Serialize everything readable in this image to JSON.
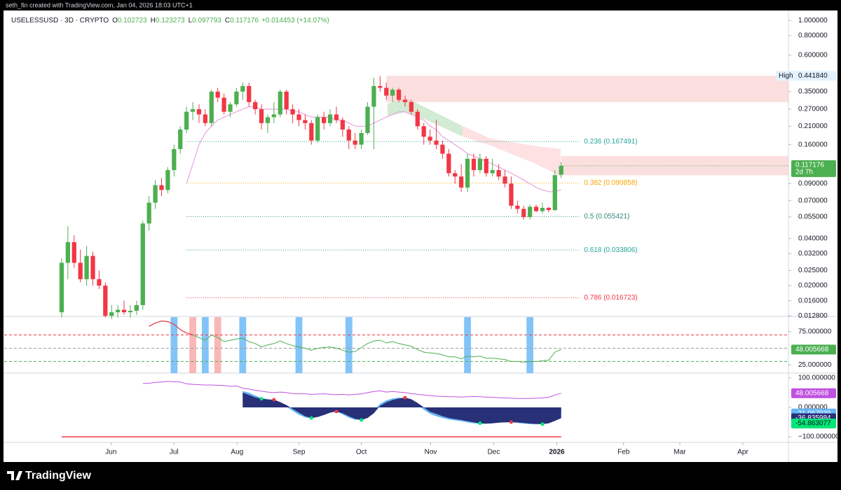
{
  "chart_data": {
    "type": "candlestick",
    "credit": "seth_fin created with TradingView.com, Jan 04, 2026 18:03 UTC+1",
    "symbol": "USELESSUSD · 3D · CRYPTO",
    "ohlc_labels": [
      "O",
      "H",
      "L",
      "C"
    ],
    "change": "+0.014453 (+14.07%)",
    "brand": "TradingView",
    "countdown": "2d 7h",
    "up_color": "#4caf50",
    "down_color": "#f23645",
    "log": true,
    "xlim": [
      -9.2,
      116.4
    ],
    "xticks": [
      {
        "value": 7.9,
        "label": "Jun"
      },
      {
        "value": 18,
        "label": "Jul"
      },
      {
        "value": 28.1,
        "label": "Aug"
      },
      {
        "value": 38,
        "label": "Sep"
      },
      {
        "value": 48,
        "label": "Oct"
      },
      {
        "value": 59.1,
        "label": "Nov"
      },
      {
        "value": 69.2,
        "label": "Dec"
      },
      {
        "value": 79.3,
        "label": "2026"
      },
      {
        "value": 90,
        "label": "Feb"
      },
      {
        "value": 99,
        "label": "Mar"
      },
      {
        "value": 109.1,
        "label": "Apr"
      }
    ],
    "ylim": [
      0.0127,
      1.1
    ],
    "yticks": [
      {
        "value": 1,
        "label": "1.000000"
      },
      {
        "value": 0.8,
        "label": "0.800000"
      },
      {
        "value": 0.6,
        "label": "0.600000"
      },
      {
        "value": 0.35,
        "label": "0.350000"
      },
      {
        "value": 0.27,
        "label": "0.270000"
      },
      {
        "value": 0.21,
        "label": "0.210000"
      },
      {
        "value": 0.16,
        "label": "0.160000"
      },
      {
        "value": 0.09,
        "label": "0.090000"
      },
      {
        "value": 0.07,
        "label": "0.070000"
      },
      {
        "value": 0.055,
        "label": "0.055000"
      },
      {
        "value": 0.04,
        "label": "0.040000"
      },
      {
        "value": 0.032,
        "label": "0.032000"
      },
      {
        "value": 0.025,
        "label": "0.025000"
      },
      {
        "value": 0.02,
        "label": "0.020000"
      },
      {
        "value": 0.016,
        "label": "0.016000"
      },
      {
        "value": 0.0128,
        "label": "0.012800"
      }
    ],
    "candles": [
      [
        0.0135,
        0.03,
        0.0125,
        0.028
      ],
      [
        0.028,
        0.048,
        0.022,
        0.038
      ],
      [
        0.038,
        0.042,
        0.026,
        0.028
      ],
      [
        0.028,
        0.034,
        0.021,
        0.022
      ],
      [
        0.022,
        0.036,
        0.02,
        0.031
      ],
      [
        0.031,
        0.033,
        0.02,
        0.022
      ],
      [
        0.022,
        0.025,
        0.019,
        0.02
      ],
      [
        0.02,
        0.021,
        0.0125,
        0.0128
      ],
      [
        0.0128,
        0.015,
        0.0122,
        0.0135
      ],
      [
        0.0135,
        0.015,
        0.0125,
        0.014
      ],
      [
        0.014,
        0.016,
        0.013,
        0.0135
      ],
      [
        0.0135,
        0.015,
        0.0125,
        0.0138
      ],
      [
        0.0138,
        0.016,
        0.013,
        0.015
      ],
      [
        0.015,
        0.052,
        0.014,
        0.05
      ],
      [
        0.05,
        0.075,
        0.045,
        0.068
      ],
      [
        0.068,
        0.095,
        0.062,
        0.088
      ],
      [
        0.088,
        0.098,
        0.075,
        0.082
      ],
      [
        0.082,
        0.115,
        0.078,
        0.11
      ],
      [
        0.11,
        0.16,
        0.1,
        0.15
      ],
      [
        0.15,
        0.21,
        0.14,
        0.2
      ],
      [
        0.2,
        0.28,
        0.19,
        0.26
      ],
      [
        0.26,
        0.3,
        0.23,
        0.27
      ],
      [
        0.27,
        0.29,
        0.22,
        0.25
      ],
      [
        0.25,
        0.27,
        0.21,
        0.22
      ],
      [
        0.22,
        0.36,
        0.21,
        0.35
      ],
      [
        0.35,
        0.37,
        0.3,
        0.32
      ],
      [
        0.32,
        0.34,
        0.25,
        0.26
      ],
      [
        0.26,
        0.3,
        0.24,
        0.29
      ],
      [
        0.29,
        0.37,
        0.28,
        0.35
      ],
      [
        0.35,
        0.4,
        0.31,
        0.38
      ],
      [
        0.38,
        0.4,
        0.28,
        0.3
      ],
      [
        0.3,
        0.31,
        0.25,
        0.27
      ],
      [
        0.27,
        0.29,
        0.2,
        0.22
      ],
      [
        0.22,
        0.25,
        0.19,
        0.24
      ],
      [
        0.24,
        0.3,
        0.22,
        0.25
      ],
      [
        0.25,
        0.36,
        0.24,
        0.35
      ],
      [
        0.35,
        0.36,
        0.25,
        0.27
      ],
      [
        0.27,
        0.29,
        0.22,
        0.25
      ],
      [
        0.25,
        0.27,
        0.21,
        0.23
      ],
      [
        0.23,
        0.25,
        0.2,
        0.22
      ],
      [
        0.22,
        0.23,
        0.16,
        0.17
      ],
      [
        0.17,
        0.25,
        0.165,
        0.24
      ],
      [
        0.24,
        0.26,
        0.2,
        0.22
      ],
      [
        0.22,
        0.27,
        0.21,
        0.25
      ],
      [
        0.25,
        0.28,
        0.22,
        0.23
      ],
      [
        0.23,
        0.24,
        0.18,
        0.2
      ],
      [
        0.2,
        0.21,
        0.15,
        0.17
      ],
      [
        0.17,
        0.19,
        0.15,
        0.16
      ],
      [
        0.16,
        0.2,
        0.15,
        0.19
      ],
      [
        0.19,
        0.3,
        0.185,
        0.28
      ],
      [
        0.28,
        0.43,
        0.15,
        0.38
      ],
      [
        0.38,
        0.44,
        0.35,
        0.37
      ],
      [
        0.37,
        0.4,
        0.31,
        0.33
      ],
      [
        0.33,
        0.37,
        0.3,
        0.36
      ],
      [
        0.36,
        0.37,
        0.3,
        0.31
      ],
      [
        0.31,
        0.33,
        0.28,
        0.3
      ],
      [
        0.3,
        0.31,
        0.25,
        0.26
      ],
      [
        0.26,
        0.27,
        0.2,
        0.21
      ],
      [
        0.21,
        0.22,
        0.16,
        0.18
      ],
      [
        0.18,
        0.2,
        0.16,
        0.17
      ],
      [
        0.17,
        0.23,
        0.15,
        0.16
      ],
      [
        0.16,
        0.17,
        0.13,
        0.14
      ],
      [
        0.14,
        0.15,
        0.1,
        0.105
      ],
      [
        0.105,
        0.11,
        0.09,
        0.1
      ],
      [
        0.1,
        0.12,
        0.08,
        0.085
      ],
      [
        0.085,
        0.14,
        0.08,
        0.13
      ],
      [
        0.13,
        0.14,
        0.1,
        0.11
      ],
      [
        0.11,
        0.14,
        0.105,
        0.13
      ],
      [
        0.13,
        0.135,
        0.1,
        0.105
      ],
      [
        0.105,
        0.13,
        0.1,
        0.11
      ],
      [
        0.11,
        0.12,
        0.095,
        0.1
      ],
      [
        0.1,
        0.11,
        0.085,
        0.09
      ],
      [
        0.09,
        0.1,
        0.062,
        0.065
      ],
      [
        0.065,
        0.07,
        0.058,
        0.062
      ],
      [
        0.062,
        0.065,
        0.053,
        0.055
      ],
      [
        0.055,
        0.066,
        0.053,
        0.064
      ],
      [
        0.064,
        0.066,
        0.059,
        0.06
      ],
      [
        0.06,
        0.068,
        0.058,
        0.063
      ],
      [
        0.063,
        0.064,
        0.059,
        0.061
      ],
      [
        0.061,
        0.11,
        0.06,
        0.102
      ],
      [
        0.102723,
        0.123273,
        0.097793,
        0.117176
      ]
    ],
    "ma": {
      "color": "#e9a3e0",
      "values": [
        null,
        null,
        null,
        null,
        null,
        null,
        null,
        null,
        null,
        null,
        null,
        null,
        null,
        null,
        null,
        null,
        null,
        null,
        null,
        null,
        0.09,
        0.12,
        0.16,
        0.19,
        0.21,
        0.23,
        0.24,
        0.25,
        0.26,
        0.27,
        0.28,
        0.28,
        0.27,
        0.27,
        0.27,
        0.27,
        0.27,
        0.26,
        0.26,
        0.25,
        0.24,
        0.24,
        0.24,
        0.24,
        0.23,
        0.23,
        0.22,
        0.21,
        0.21,
        0.21,
        0.22,
        0.23,
        0.24,
        0.25,
        0.26,
        0.26,
        0.25,
        0.24,
        0.23,
        0.21,
        0.2,
        0.18,
        0.17,
        0.16,
        0.15,
        0.14,
        0.135,
        0.13,
        0.125,
        0.12,
        0.115,
        0.11,
        0.105,
        0.1,
        0.095,
        0.09,
        0.085,
        0.082,
        0.08,
        0.08,
        0.082
      ]
    },
    "zones": [
      {
        "lo": 0.3,
        "hi": 0.44184,
        "from": 52
      },
      {
        "lo": 0.102,
        "hi": 0.135,
        "from": 80
      }
    ],
    "zone_color": "#f8c8c8",
    "high": {
      "label": "High",
      "value": 0.44184,
      "value_label": "0.441840"
    },
    "fib": [
      {
        "label": "0.236 (0.167491)",
        "value": 0.167491,
        "color": "#26a69a"
      },
      {
        "label": "0.382 (0.090858)",
        "value": 0.090858,
        "color": "#f7a600"
      },
      {
        "label": "0.5 (0.055421)",
        "value": 0.055421,
        "color": "#2e8b7a"
      },
      {
        "label": "0.618 (0.033806)",
        "value": 0.033806,
        "color": "#26a69a"
      },
      {
        "label": "0.786 (0.016723)",
        "value": 0.016723,
        "color": "#f23645"
      }
    ],
    "rsi": {
      "ylim": [
        12.5,
        96.9
      ],
      "yticks": [
        {
          "value": 75,
          "label": "75.000000"
        },
        {
          "value": 25,
          "label": "25.000000"
        }
      ],
      "levels": [
        {
          "value": 70,
          "color": "#f23645"
        },
        {
          "value": 50,
          "color": "#9e9e9e"
        },
        {
          "value": 30,
          "color": "#4caf50"
        }
      ],
      "color": "#4caf50",
      "over_color": "#f23645",
      "values": [
        null,
        null,
        null,
        null,
        null,
        null,
        null,
        null,
        null,
        null,
        null,
        null,
        null,
        null,
        83,
        88,
        91,
        90,
        86,
        78,
        73,
        70,
        66,
        62,
        70,
        66,
        60,
        62,
        64,
        65,
        60,
        57,
        52,
        55,
        57,
        61,
        57,
        54,
        52,
        50,
        47,
        50,
        51,
        52,
        50,
        47,
        44,
        45,
        51,
        57,
        61,
        62,
        58,
        60,
        57,
        55,
        53,
        48,
        44,
        43,
        42,
        40,
        37,
        37,
        34,
        38,
        37,
        38,
        35,
        35,
        34,
        33,
        30,
        30,
        29,
        30,
        30,
        31,
        32,
        44,
        48.005668
      ],
      "signals": [
        {
          "index": 18,
          "color": "#64b5f6"
        },
        {
          "index": 21,
          "color": "#f8a5a5"
        },
        {
          "index": 23,
          "color": "#64b5f6"
        },
        {
          "index": 25,
          "color": "#f8a5a5"
        },
        {
          "index": 29,
          "color": "#64b5f6"
        },
        {
          "index": 38,
          "color": "#64b5f6"
        },
        {
          "index": 46,
          "color": "#64b5f6"
        },
        {
          "index": 65,
          "color": "#64b5f6"
        },
        {
          "index": 75,
          "color": "#64b5f6"
        }
      ]
    },
    "osc": {
      "ylim": [
        -119,
        114
      ],
      "yticks": [
        {
          "value": 100,
          "label": "100.000000"
        },
        {
          "value": 0,
          "label": "0.000000"
        },
        {
          "value": -100,
          "label": "−100.000000"
        }
      ],
      "floor": {
        "value": -100,
        "color": "#f23645"
      },
      "line": {
        "color": "#c050e0",
        "values": [
          null,
          null,
          null,
          null,
          null,
          null,
          null,
          null,
          null,
          null,
          null,
          null,
          null,
          81,
          82,
          85,
          86,
          88,
          87,
          86,
          80,
          78,
          77,
          76,
          76,
          75,
          74,
          72,
          73,
          65,
          62,
          58,
          55,
          52,
          50,
          52,
          50,
          47,
          46,
          46,
          44,
          45,
          46,
          44,
          43,
          44,
          42,
          44,
          46,
          50,
          54,
          56,
          52,
          54,
          52,
          50,
          47,
          44,
          42,
          40,
          38,
          37,
          36,
          36,
          35,
          36,
          37,
          36,
          35,
          34,
          33,
          32,
          31,
          30,
          30,
          30,
          31,
          32,
          34,
          42,
          48.005668
        ]
      },
      "fast": {
        "color": "#64b5f6",
        "values": [
          null,
          null,
          null,
          null,
          null,
          null,
          null,
          null,
          null,
          null,
          null,
          null,
          null,
          null,
          null,
          null,
          null,
          null,
          null,
          null,
          null,
          null,
          null,
          null,
          null,
          null,
          null,
          null,
          null,
          55,
          50,
          40,
          32,
          28,
          24,
          15,
          2,
          -12,
          -25,
          -34,
          -38,
          -32,
          -22,
          -14,
          -14,
          -24,
          -35,
          -42,
          -42,
          -30,
          -10,
          12,
          24,
          30,
          33,
          32,
          22,
          8,
          -8,
          -22,
          -30,
          -36,
          -41,
          -44,
          -47,
          -51,
          -54,
          -56,
          -56,
          -54,
          -52,
          -51,
          -51,
          -53,
          -55,
          -57,
          -58,
          -57,
          -50,
          -36,
          -21.067939
        ]
      },
      "slow": {
        "color": "#283078",
        "values": [
          null,
          null,
          null,
          null,
          null,
          null,
          null,
          null,
          null,
          null,
          null,
          null,
          null,
          null,
          null,
          null,
          null,
          null,
          null,
          null,
          null,
          null,
          null,
          null,
          null,
          null,
          null,
          null,
          null,
          50,
          42,
          34,
          29,
          27,
          26,
          18,
          8,
          -5,
          -18,
          -30,
          -36,
          -33,
          -26,
          -18,
          -14,
          -20,
          -30,
          -39,
          -43,
          -36,
          -20,
          5,
          17,
          25,
          30,
          33,
          28,
          15,
          0,
          -15,
          -22,
          -30,
          -36,
          -40,
          -43,
          -47,
          -51,
          -54,
          -55,
          -54,
          -52,
          -51,
          -50,
          -51,
          -53,
          -55,
          -56,
          -57,
          -54,
          -46,
          -36.835984
        ]
      },
      "marker_value": {
        "value": -54.863077,
        "color": "#00e676"
      },
      "markers": [
        {
          "index": 32,
          "value": 29,
          "color": "#00e676"
        },
        {
          "index": 34,
          "value": 26,
          "color": "#f23645"
        },
        {
          "index": 40,
          "value": -36,
          "color": "#00e676"
        },
        {
          "index": 44,
          "value": -14,
          "color": "#f23645"
        },
        {
          "index": 48,
          "value": -43,
          "color": "#00e676"
        },
        {
          "index": 55,
          "value": 33,
          "color": "#f23645"
        },
        {
          "index": 67,
          "value": -54,
          "color": "#00e676"
        },
        {
          "index": 72,
          "value": -50,
          "color": "#f23645"
        },
        {
          "index": 77,
          "value": -57,
          "color": "#00e676"
        }
      ]
    }
  }
}
